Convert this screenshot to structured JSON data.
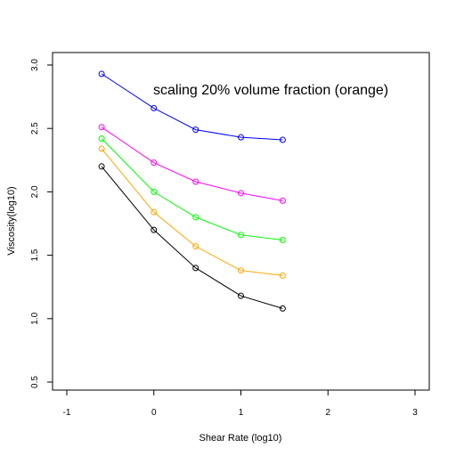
{
  "chart_data": {
    "type": "line",
    "title": "",
    "annotation": "scaling 20% volume fraction (orange)",
    "xlabel": "Shear Rate (log10)",
    "ylabel": "Viscosity(log10)",
    "xlim": [
      -1,
      3
    ],
    "ylim": [
      0.5,
      3.0
    ],
    "xticks": [
      "-1",
      "0",
      "1",
      "2",
      "3"
    ],
    "yticks": [
      "0.5",
      "1.0",
      "1.5",
      "2.0",
      "2.5",
      "3.0"
    ],
    "grid": false,
    "legend": "none",
    "x": [
      -0.6,
      0.0,
      0.48,
      1.0,
      1.48
    ],
    "series": [
      {
        "color": "#0000ff",
        "values": [
          2.93,
          2.66,
          2.49,
          2.43,
          2.41
        ]
      },
      {
        "color": "#ff00ff",
        "values": [
          2.51,
          2.23,
          2.08,
          1.99,
          1.93
        ]
      },
      {
        "color": "#00ff00",
        "values": [
          2.42,
          2.0,
          1.8,
          1.66,
          1.62
        ]
      },
      {
        "color": "#ffa500",
        "values": [
          2.34,
          1.84,
          1.57,
          1.38,
          1.34
        ]
      },
      {
        "color": "#000000",
        "values": [
          2.2,
          1.7,
          1.4,
          1.18,
          1.08
        ]
      }
    ]
  }
}
